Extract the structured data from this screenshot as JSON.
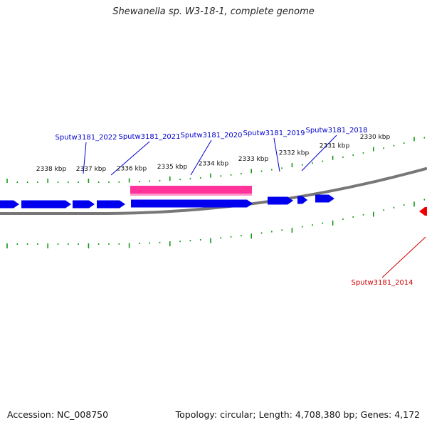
{
  "title": "Shewanella sp. W3-18-1, complete genome",
  "footer": {
    "accession": "Accession: NC_008750",
    "info": "Topology: circular; Length: 4,708,380 bp; Genes: 4,172"
  },
  "scale_labels": [
    {
      "text": "2338 kbp",
      "kbp": 2338
    },
    {
      "text": "2337 kbp",
      "kbp": 2337
    },
    {
      "text": "2336 kbp",
      "kbp": 2336
    },
    {
      "text": "2335 kbp",
      "kbp": 2335
    },
    {
      "text": "2334 kbp",
      "kbp": 2334
    },
    {
      "text": "2333 kbp",
      "kbp": 2333
    },
    {
      "text": "2332 kbp",
      "kbp": 2332
    },
    {
      "text": "2331 kbp",
      "kbp": 2331
    },
    {
      "text": "2330 kbp",
      "kbp": 2330
    }
  ],
  "gene_labels": [
    {
      "text": "Sputw3181_2022",
      "color": "#0000cc"
    },
    {
      "text": "Sputw3181_2021",
      "color": "#0000cc"
    },
    {
      "text": "Sputw3181_2020",
      "color": "#0000cc"
    },
    {
      "text": "Sputw3181_2019",
      "color": "#0000cc"
    },
    {
      "text": "Sputw3181_2018",
      "color": "#0000cc"
    },
    {
      "text": "Sputw3181_2014",
      "color": "#cc0000"
    }
  ],
  "colors": {
    "gene_forward": "#0000ee",
    "gene_reverse": "#ee0000",
    "feature_bar": "#ff3399",
    "tick": "#119911",
    "backbone": "#777777"
  }
}
